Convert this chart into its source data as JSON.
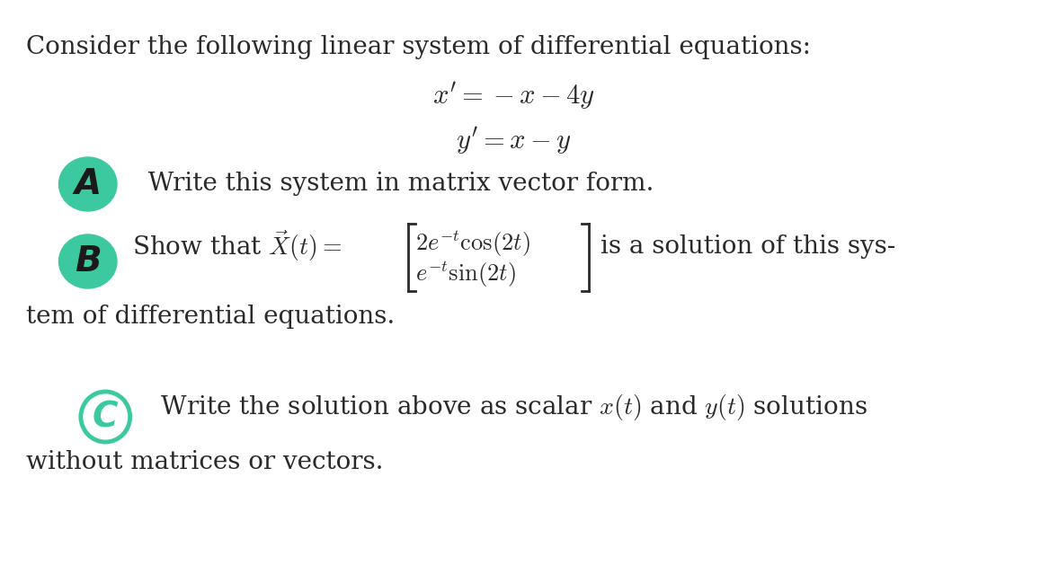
{
  "background_color": "#ffffff",
  "text_color": "#2a2a2a",
  "teal_color": "#3dc9a0",
  "intro_text": "Consider the following linear system of differential equations:",
  "label_A": "A",
  "label_B": "B",
  "label_C": "C",
  "text_A": "Write this system in matrix vector form.",
  "text_B_after": "is a solution of this sys-",
  "text_B_wrap": "tem of differential equations.",
  "text_C_line1": "Write the solution above as scalar $x(t)$ and $y(t)$ solutions",
  "text_C_line2": "without matrices or vectors.",
  "figsize": [
    11.68,
    6.49
  ],
  "dpi": 100,
  "intro_fontsize": 20,
  "body_fontsize": 20,
  "eq_fontsize": 22,
  "label_fontsize": 28
}
